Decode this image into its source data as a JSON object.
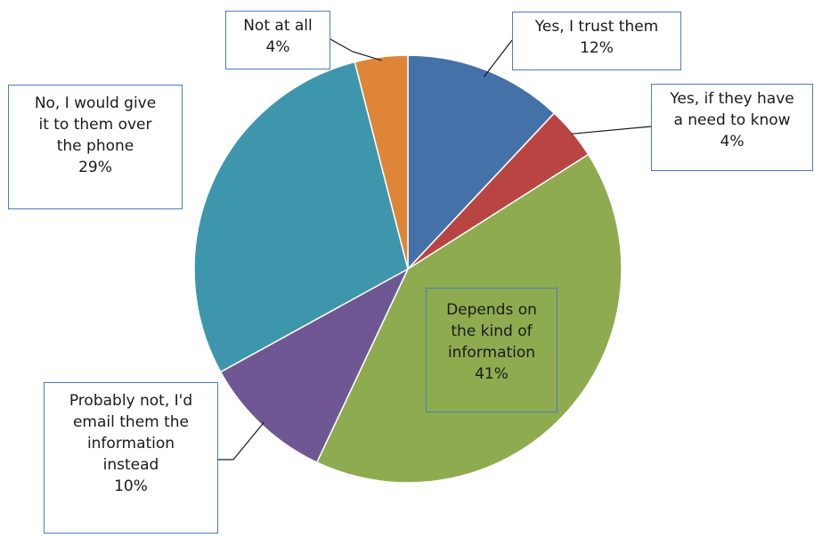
{
  "chart_data": {
    "type": "pie",
    "slices": [
      {
        "label_lines": [
          "Yes, I trust them"
        ],
        "value": 12,
        "percent_label": "12%",
        "color": "#4472a8"
      },
      {
        "label_lines": [
          "Yes, if they have",
          "a need to know"
        ],
        "value": 4,
        "percent_label": "4%",
        "color": "#b94542"
      },
      {
        "label_lines": [
          "Depends on",
          "the kind of",
          "information"
        ],
        "value": 41,
        "percent_label": "41%",
        "color": "#8eab4f"
      },
      {
        "label_lines": [
          "Probably not, I'd",
          "email them the",
          "information",
          "instead"
        ],
        "value": 10,
        "percent_label": "10%",
        "color": "#6f5793"
      },
      {
        "label_lines": [
          "No, I would give",
          "it to them over",
          "the phone"
        ],
        "value": 29,
        "percent_label": "29%",
        "color": "#3e96ad"
      },
      {
        "label_lines": [
          "Not at all"
        ],
        "value": 4,
        "percent_label": "4%",
        "color": "#de8538"
      }
    ],
    "legend": "none"
  }
}
